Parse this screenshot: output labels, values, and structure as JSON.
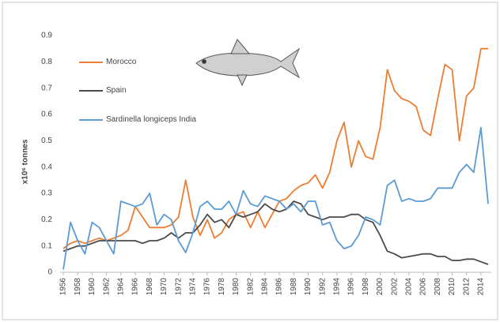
{
  "chart_data": {
    "type": "line",
    "y_label": "x10⁶ tonnes",
    "x": [
      1956,
      1957,
      1958,
      1959,
      1960,
      1961,
      1962,
      1963,
      1964,
      1965,
      1966,
      1967,
      1968,
      1969,
      1970,
      1971,
      1972,
      1973,
      1974,
      1975,
      1976,
      1977,
      1978,
      1979,
      1980,
      1981,
      1982,
      1983,
      1984,
      1985,
      1986,
      1987,
      1988,
      1989,
      1990,
      1991,
      1992,
      1993,
      1994,
      1995,
      1996,
      1997,
      1998,
      1999,
      2000,
      2001,
      2002,
      2003,
      2004,
      2005,
      2006,
      2007,
      2008,
      2009,
      2010,
      2011,
      2012,
      2013,
      2014,
      2015
    ],
    "xlim": [
      1956,
      2015
    ],
    "xticks": [
      1956,
      1958,
      1960,
      1962,
      1964,
      1966,
      1968,
      1970,
      1972,
      1974,
      1976,
      1978,
      1980,
      1982,
      1984,
      1986,
      1988,
      1990,
      1992,
      1994,
      1996,
      1998,
      2000,
      2002,
      2004,
      2006,
      2008,
      2010,
      2012,
      2014
    ],
    "ylim": [
      0,
      0.9
    ],
    "yticks": [
      0,
      0.1,
      0.2,
      0.3,
      0.4,
      0.5,
      0.6,
      0.7,
      0.8,
      0.9
    ],
    "grid": false,
    "series": [
      {
        "name": "Morocco",
        "color": "#ed7d31",
        "values": [
          0.09,
          0.11,
          0.12,
          0.11,
          0.12,
          0.13,
          0.12,
          0.13,
          0.14,
          0.16,
          0.25,
          0.21,
          0.17,
          0.17,
          0.17,
          0.18,
          0.21,
          0.35,
          0.21,
          0.14,
          0.2,
          0.13,
          0.15,
          0.2,
          0.22,
          0.23,
          0.17,
          0.23,
          0.17,
          0.22,
          0.27,
          0.28,
          0.31,
          0.33,
          0.34,
          0.37,
          0.32,
          0.38,
          0.5,
          0.57,
          0.4,
          0.5,
          0.44,
          0.43,
          0.55,
          0.77,
          0.69,
          0.66,
          0.65,
          0.63,
          0.54,
          0.52,
          0.66,
          0.79,
          0.77,
          0.5,
          0.67,
          0.7,
          0.85,
          0.85
        ]
      },
      {
        "name": "Spain",
        "color": "#4a4a4a",
        "values": [
          0.08,
          0.09,
          0.1,
          0.1,
          0.11,
          0.12,
          0.12,
          0.12,
          0.12,
          0.12,
          0.12,
          0.11,
          0.12,
          0.12,
          0.13,
          0.15,
          0.13,
          0.15,
          0.15,
          0.18,
          0.22,
          0.19,
          0.2,
          0.17,
          0.22,
          0.21,
          0.22,
          0.23,
          0.26,
          0.24,
          0.23,
          0.24,
          0.27,
          0.26,
          0.22,
          0.21,
          0.2,
          0.21,
          0.21,
          0.21,
          0.22,
          0.22,
          0.2,
          0.19,
          0.14,
          0.08,
          0.07,
          0.055,
          0.06,
          0.065,
          0.07,
          0.07,
          0.06,
          0.06,
          0.045,
          0.045,
          0.05,
          0.05,
          0.04,
          0.03
        ]
      },
      {
        "name": "Sardinella longiceps India",
        "color": "#5b9bd5",
        "values": [
          0.01,
          0.19,
          0.12,
          0.07,
          0.19,
          0.17,
          0.12,
          0.07,
          0.27,
          0.26,
          0.25,
          0.26,
          0.3,
          0.18,
          0.22,
          0.2,
          0.12,
          0.075,
          0.15,
          0.25,
          0.27,
          0.24,
          0.24,
          0.27,
          0.22,
          0.31,
          0.26,
          0.25,
          0.29,
          0.28,
          0.27,
          0.24,
          0.26,
          0.23,
          0.27,
          0.27,
          0.18,
          0.19,
          0.12,
          0.09,
          0.1,
          0.14,
          0.21,
          0.2,
          0.18,
          0.33,
          0.35,
          0.27,
          0.28,
          0.27,
          0.27,
          0.28,
          0.32,
          0.32,
          0.32,
          0.38,
          0.41,
          0.38,
          0.55,
          0.26
        ]
      }
    ]
  }
}
